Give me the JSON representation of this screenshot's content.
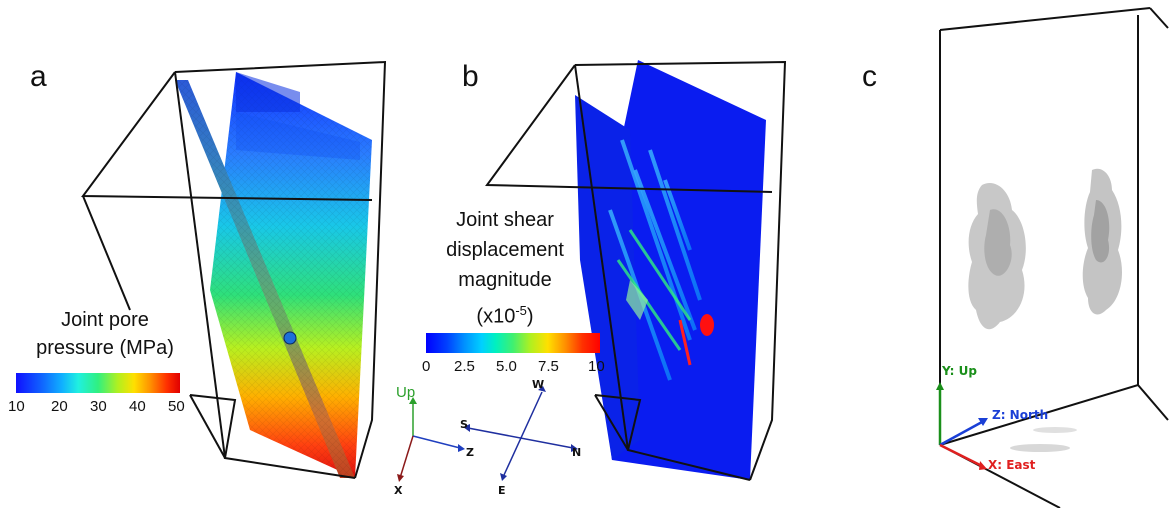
{
  "panels": {
    "a": {
      "label": "a",
      "colorbar": {
        "title_line1": "Joint pore",
        "title_line2": "pressure (MPa)",
        "ticks": [
          "10",
          "20",
          "30",
          "40",
          "50"
        ]
      }
    },
    "b": {
      "label": "b",
      "colorbar": {
        "title_line1": "Joint shear",
        "title_line2": "displacement",
        "title_line3": "magnitude",
        "title_line4_prefix": "(x10",
        "title_line4_sup": "-5",
        "title_line4_suffix": ")",
        "ticks": [
          "0",
          "2.5",
          "5.0",
          "7.5",
          "10"
        ]
      },
      "triad": {
        "up": "Up",
        "x": "X",
        "z": "Z"
      },
      "compass": {
        "s": "S",
        "n": "N",
        "w": "W",
        "e": "E"
      }
    },
    "c": {
      "label": "c",
      "axes": {
        "y": "Y: Up",
        "z": "Z: North",
        "x": "X: East"
      }
    }
  },
  "colors": {
    "low": "#0000ff",
    "high": "#ff0000",
    "triad_up": "#2ca02c",
    "triad_x": "#8b1a1a",
    "triad_z": "#1f3fbf",
    "axis_y": "#1a8f1a",
    "axis_z": "#1a3fd6",
    "axis_x": "#e02020"
  }
}
